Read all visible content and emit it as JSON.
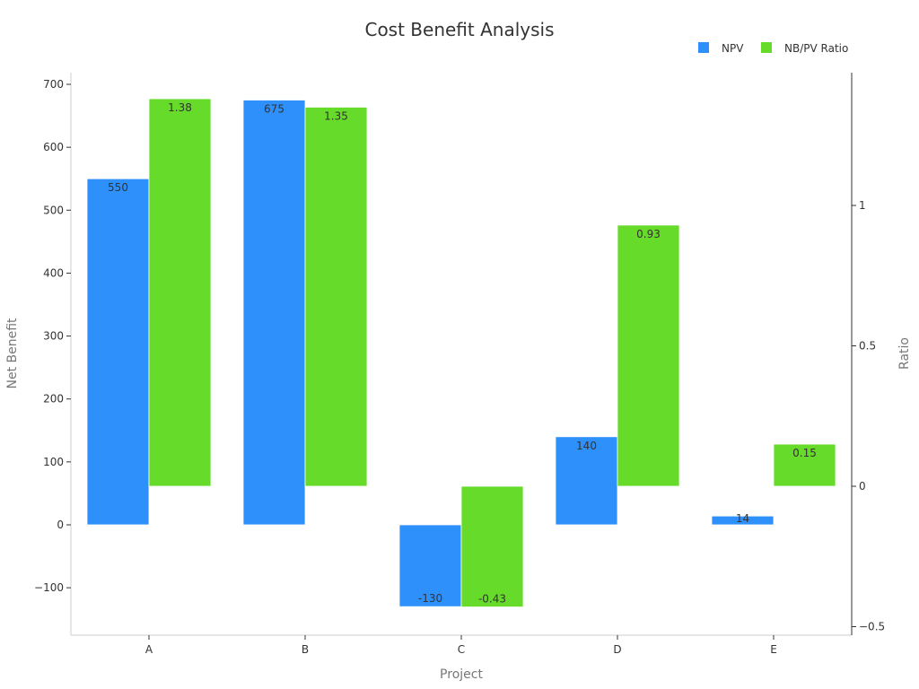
{
  "chart_data": {
    "type": "bar",
    "title": "Cost Benefit Analysis",
    "xlabel": "Project",
    "ylabel": "Net Benefit",
    "y2label": "Ratio",
    "categories": [
      "A",
      "B",
      "C",
      "D",
      "E"
    ],
    "series": [
      {
        "name": "NPV",
        "axis": "left",
        "color": "#2e90fa",
        "values": [
          550,
          675,
          -130,
          140,
          14
        ],
        "labels": [
          "550",
          "675",
          "-130",
          "140",
          "14"
        ]
      },
      {
        "name": "NB/PV Ratio",
        "axis": "right",
        "color": "#66db29",
        "values": [
          1.38,
          1.35,
          -0.43,
          0.93,
          0.15
        ],
        "labels": [
          "1.38",
          "1.35",
          "-0.43",
          "0.93",
          "0.15"
        ]
      }
    ],
    "ylim": [
      -175,
      720
    ],
    "y2lim": [
      -0.53,
      1.48
    ],
    "yticks": [
      -100,
      0,
      100,
      200,
      300,
      400,
      500,
      600,
      700
    ],
    "ytick_labels": [
      "−100",
      "0",
      "100",
      "200",
      "300",
      "400",
      "500",
      "600",
      "700"
    ],
    "y2ticks": [
      -0.5,
      0,
      0.5,
      1
    ],
    "y2tick_labels": [
      "−0.5",
      "0",
      "0.5",
      "1"
    ],
    "legend_position": "top-right",
    "grid": false
  }
}
